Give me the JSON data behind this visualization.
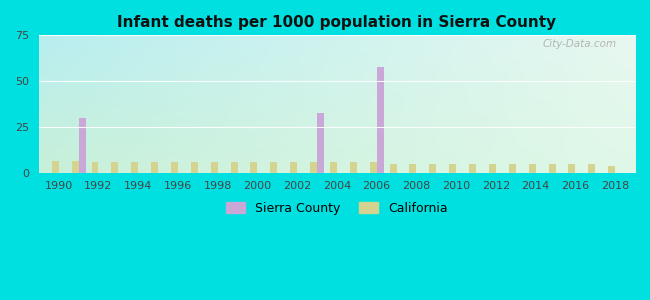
{
  "title": "Infant deaths per 1000 population in Sierra County",
  "years": [
    1990,
    1991,
    1992,
    1993,
    1994,
    1995,
    1996,
    1997,
    1998,
    1999,
    2000,
    2001,
    2002,
    2003,
    2004,
    2005,
    2006,
    2007,
    2008,
    2009,
    2010,
    2011,
    2012,
    2013,
    2014,
    2015,
    2016,
    2017,
    2018
  ],
  "sierra_county": [
    0,
    30,
    0,
    0,
    0,
    0,
    0,
    0,
    0,
    0,
    0,
    0,
    0,
    33,
    0,
    0,
    58,
    0,
    0,
    0,
    0,
    0,
    0,
    0,
    0,
    0,
    0,
    0,
    0
  ],
  "california": [
    7,
    7,
    6,
    6,
    6,
    6,
    6,
    6,
    6,
    6,
    6,
    6,
    6,
    6,
    6,
    6,
    6,
    5,
    5,
    5,
    5,
    5,
    5,
    5,
    5,
    5,
    5,
    5,
    4
  ],
  "sierra_color": "#c9a8d8",
  "california_color": "#d4d490",
  "ylim": [
    0,
    75
  ],
  "yticks": [
    0,
    25,
    50,
    75
  ],
  "bg_top_left": "#b8eef0",
  "bg_top_right": "#e8f8f0",
  "bg_bottom_left": "#c8f0d8",
  "bg_bottom_right": "#e0f8e8",
  "outer_bg": "#00e0e0",
  "bar_width": 0.35,
  "legend_sierra": "Sierra County",
  "legend_california": "California"
}
